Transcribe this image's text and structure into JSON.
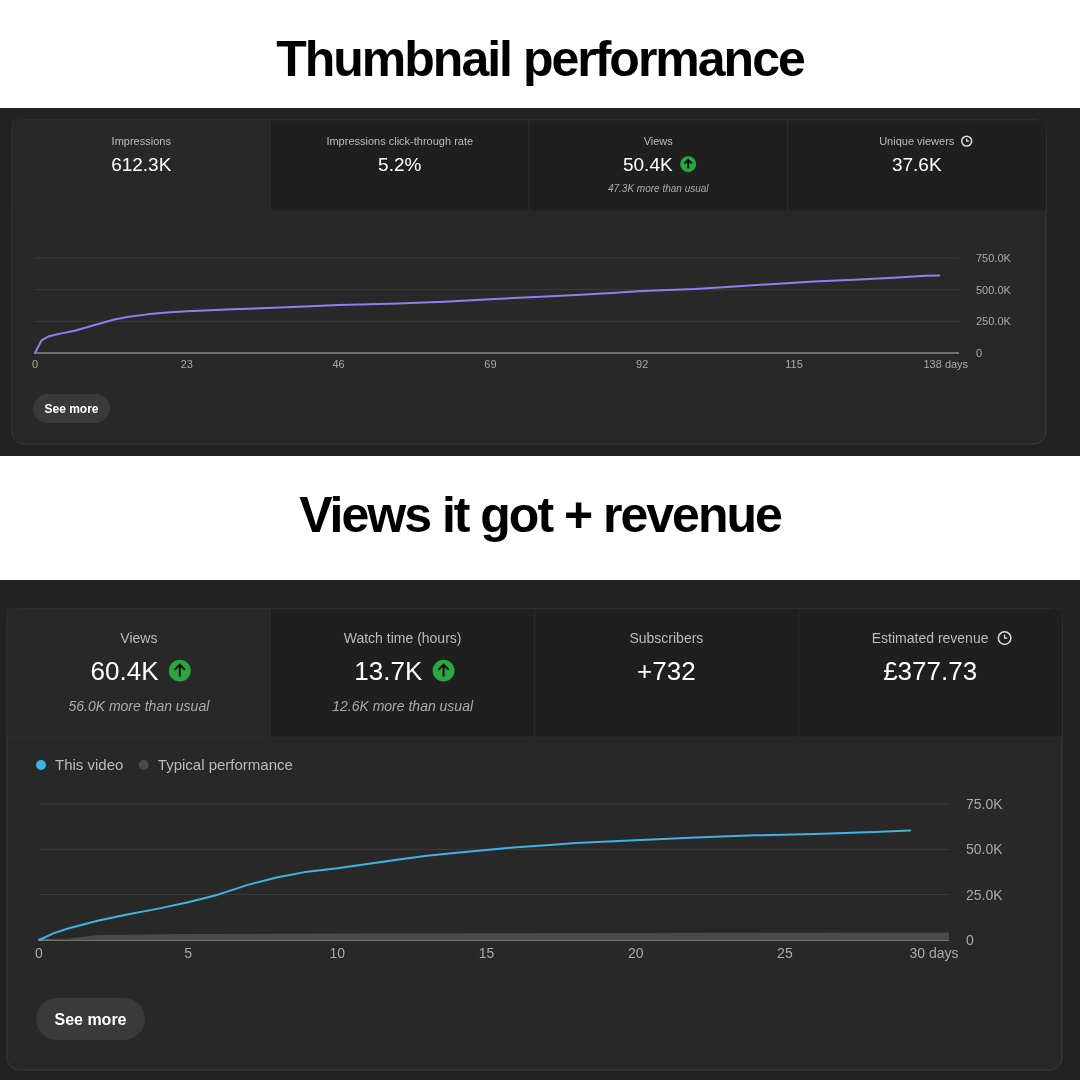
{
  "chart_data": [
    {
      "type": "other",
      "title": "Thumbnail performance",
      "categories": [
        "Impressions",
        "Impressions click-through rate",
        "Views",
        "Unique viewers"
      ],
      "value_labels": [
        "612.3K",
        "5.2%",
        "50.4K",
        "37.6K"
      ],
      "annotations": [
        {
          "text": "47.3K more than usual",
          "x": "Views"
        }
      ]
    },
    {
      "type": "line",
      "x": [
        0,
        1,
        2,
        4,
        6,
        8,
        10,
        12,
        14,
        17,
        20,
        23,
        30,
        40,
        46,
        55,
        62,
        69,
        75,
        82,
        88,
        92,
        100,
        106,
        112,
        118,
        125,
        130,
        135,
        137
      ],
      "series": [
        {
          "color": "#8b80f0",
          "values": [
            0,
            100000,
            130000,
            155000,
            175000,
            205000,
            235000,
            265000,
            285000,
            305000,
            320000,
            330000,
            345000,
            365000,
            378000,
            390000,
            405000,
            425000,
            440000,
            458000,
            475000,
            490000,
            505000,
            525000,
            545000,
            565000,
            580000,
            595000,
            610000,
            612000
          ]
        }
      ],
      "xlim": [
        0,
        140
      ],
      "xticks": [
        0,
        23,
        46,
        69,
        92,
        115,
        {
          "value": 138,
          "label": "138 days"
        }
      ],
      "ylim": [
        0,
        750000
      ],
      "yticks": [
        0,
        {
          "value": 250000,
          "label": "250.0K"
        },
        {
          "value": 500000,
          "label": "500.0K"
        },
        {
          "value": 750000,
          "label": "750.0K"
        }
      ],
      "grid": "y",
      "annotations": [
        "See more"
      ]
    },
    {
      "type": "other",
      "title": "Views it got + revenue",
      "categories": [
        "Views",
        "Watch time (hours)",
        "Subscribers",
        "Estimated revenue"
      ],
      "value_labels": [
        "60.4K",
        "13.7K",
        "+732",
        "£377.73"
      ],
      "annotations": [
        {
          "text": "56.0K more than usual",
          "x": "Views"
        },
        {
          "text": "12.6K more than usual",
          "x": "Watch time (hours)"
        }
      ]
    },
    {
      "type": "line",
      "x": [
        0,
        0.5,
        1,
        2,
        3,
        4,
        5,
        6,
        7,
        8,
        9,
        10,
        11,
        12,
        13,
        14,
        15,
        16,
        17,
        18,
        20,
        22,
        24,
        26,
        28,
        29.2
      ],
      "series": [
        {
          "name": "This video",
          "color": "#3eb4e6",
          "values": [
            0,
            3800,
            6500,
            10800,
            14200,
            17300,
            20800,
            25000,
            30400,
            34600,
            37700,
            39600,
            41900,
            44200,
            46500,
            48100,
            49600,
            51200,
            52300,
            53500,
            55000,
            56500,
            57700,
            58500,
            59600,
            60400
          ]
        },
        {
          "name": "Typical performance",
          "type": "area",
          "color": "#4a4a4a",
          "x": [
            0,
            1,
            2,
            5,
            10,
            20,
            30.5
          ],
          "values": [
            0,
            800,
            2800,
            3300,
            3600,
            3900,
            4200
          ]
        }
      ],
      "xlim": [
        0,
        30.5
      ],
      "xticks": [
        0,
        5,
        10,
        15,
        20,
        25,
        {
          "value": 30,
          "label": "30 days"
        }
      ],
      "ylim": [
        0,
        75000
      ],
      "yticks": [
        0,
        {
          "value": 25000,
          "label": "25.0K"
        },
        {
          "value": 50000,
          "label": "50.0K"
        },
        {
          "value": 75000,
          "label": "75.0K"
        }
      ],
      "grid": "y",
      "legend": "top left",
      "annotations": [
        "See more"
      ]
    }
  ]
}
